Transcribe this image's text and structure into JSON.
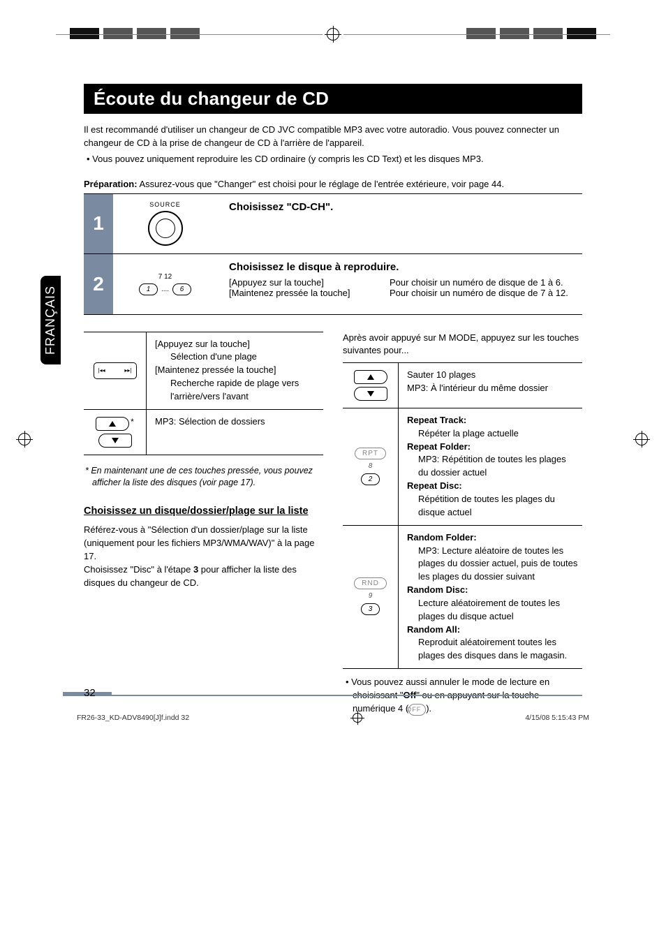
{
  "lang_tab": "FRANÇAIS",
  "title": "Écoute du changeur de CD",
  "intro": {
    "p1": "Il est recommandé d'utiliser un changeur de CD JVC compatible MP3 avec votre autoradio. Vous pouvez connecter un changeur de CD à la prise de changeur de CD à l'arrière de l'appareil.",
    "bullet": "•  Vous pouvez uniquement reproduire les CD ordinaire (y compris les CD Text) et les disques MP3."
  },
  "prep": {
    "label": "Préparation:",
    "text": " Assurez-vous que \"Changer\" est choisi pour le réglage de l'entrée extérieure, voir page 44."
  },
  "steps": [
    {
      "num": "1",
      "graphic_label": "SOURCE",
      "head": "Choisissez \"CD-CH\"."
    },
    {
      "num": "2",
      "graphic_nums_top": "7             12",
      "pill1": "1",
      "dots": "....",
      "pill2": "6",
      "head": "Choisissez le disque à reproduire.",
      "l1": "[Appuyez sur la touche]",
      "r1": "Pour choisir un numéro de disque de 1 à 6.",
      "l2": "[Maintenez pressée la touche]",
      "r2": "Pour choisir un numéro de disque de 7 à 12."
    }
  ],
  "left_col": {
    "row1": {
      "l1": "[Appuyez sur la touche]",
      "l1b": "Sélection d'une plage",
      "l2": "[Maintenez pressée la touche]",
      "l2b": "Recherche rapide de plage vers l'arrière/vers l'avant"
    },
    "row2": {
      "text": "MP3: Sélection de dossiers"
    },
    "footnote": "*  En maintenant une de ces touches pressée, vous pouvez afficher la liste des disques (voir page 17).",
    "sub_head": "Choisissez un disque/dossier/plage sur la liste",
    "para1": "Référez-vous à \"Sélection d'un dossier/plage sur la liste (uniquement pour les fichiers MP3/WMA/WAV)\" à la page 17.",
    "para2": "Choisissez \"Disc\" à l'étape 3 pour afficher la liste des disques du changeur de CD."
  },
  "right_col": {
    "intro": "Après avoir appuyé sur M MODE, appuyez sur les touches suivantes pour...",
    "row1": {
      "t1": "Sauter 10 plages",
      "t2": "MP3: À l'intérieur du même dossier"
    },
    "row2": {
      "pill": "RPT",
      "pill_num": "8",
      "pill2": "2",
      "h1": "Repeat Track:",
      "b1": "Répéter la plage actuelle",
      "h2": "Repeat Folder:",
      "b2": "MP3: Répétition de toutes les plages du dossier actuel",
      "h3": "Repeat Disc:",
      "b3": "Répétition de toutes les plages du disque actuel"
    },
    "row3": {
      "pill": "RND",
      "pill_num": "9",
      "pill2": "3",
      "h1": "Random Folder:",
      "b1": "MP3: Lecture aléatoire de toutes les plages du dossier actuel, puis de toutes les plages du dossier suivant",
      "h2": "Random Disc:",
      "b2": "Lecture aléatoirement de toutes les plages du disque actuel",
      "h3": "Random All:",
      "b3": "Reproduit aléatoirement toutes les plages des disques dans le magasin."
    },
    "note_pre": "•  Vous pouvez aussi annuler le mode de lecture en choisissant \"",
    "note_bold": "Off",
    "note_post": "\" ou en appuyant sur la touche numérique 4 (",
    "note_pill": "OFF",
    "note_end": ")."
  },
  "page_number": "32",
  "footer": {
    "left": "FR26-33_KD-ADV8490[J]f.indd   32",
    "right": "4/15/08   5:15:43 PM"
  },
  "colors": {
    "step_num_bg": "#7a8aa0",
    "rule": "#7a8aa0"
  }
}
